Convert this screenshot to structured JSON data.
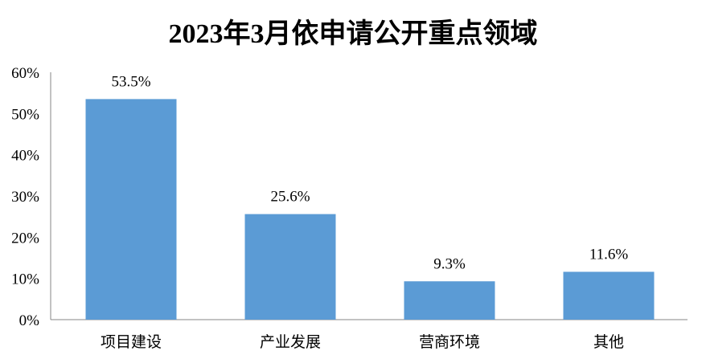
{
  "chart_data": {
    "type": "bar",
    "title": "2023年3月依申请公开重点领域",
    "categories": [
      "项目建设",
      "产业发展",
      "营商环境",
      "其他"
    ],
    "values": [
      53.5,
      25.6,
      9.3,
      11.6
    ],
    "data_labels": [
      "53.5%",
      "25.6%",
      "9.3%",
      "11.6%"
    ],
    "ylim": [
      0,
      60
    ],
    "yticks": [
      0,
      10,
      20,
      30,
      40,
      50,
      60
    ],
    "ytick_labels": [
      "0%",
      "10%",
      "20%",
      "30%",
      "40%",
      "50%",
      "60%"
    ],
    "xlabel": "",
    "ylabel": "",
    "grid": false,
    "legend": "none",
    "bar_color": "#5b9bd5"
  }
}
